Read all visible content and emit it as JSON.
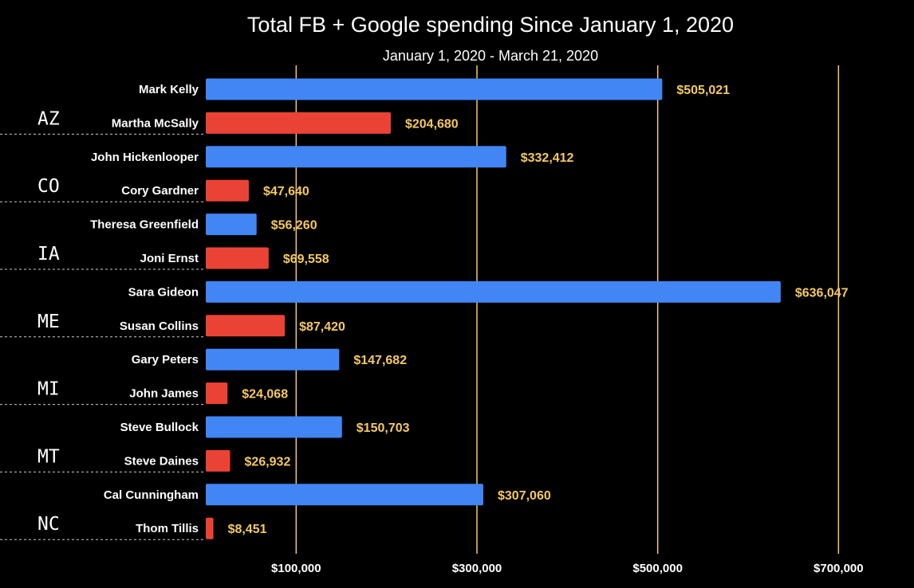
{
  "chart_data": {
    "type": "bar",
    "orientation": "horizontal",
    "title": "Total FB + Google spending Since January 1, 2020",
    "subtitle": "January 1, 2020 - March 21, 2020",
    "categories": [
      "Mark Kelly",
      "Martha McSally",
      "John Hickenlooper",
      "Cory Gardner",
      "Theresa Greenfield",
      "Joni Ernst",
      "Sara Gideon",
      "Susan Collins",
      "Gary Peters",
      "John James",
      "Steve Bullock",
      "Steve Daines",
      "Cal Cunningham",
      "Thom Tillis"
    ],
    "values": [
      505021,
      204680,
      332412,
      47640,
      56260,
      69558,
      636047,
      87420,
      147682,
      24068,
      150703,
      26932,
      307060,
      8451
    ],
    "value_labels": [
      "$505,021",
      "$204,680",
      "$332,412",
      "$47,640",
      "$56,260",
      "$69,558",
      "$636,047",
      "$87,420",
      "$147,682",
      "$24,068",
      "$150,703",
      "$26,932",
      "$307,060",
      "$8,451"
    ],
    "bar_colors": [
      "#4285f4",
      "#ea4335",
      "#4285f4",
      "#ea4335",
      "#4285f4",
      "#ea4335",
      "#4285f4",
      "#ea4335",
      "#4285f4",
      "#ea4335",
      "#4285f4",
      "#ea4335",
      "#4285f4",
      "#ea4335"
    ],
    "groups": [
      "AZ",
      "CO",
      "IA",
      "ME",
      "MI",
      "MT",
      "NC"
    ],
    "xlim": [
      0,
      750000
    ],
    "xticks": [
      100000,
      300000,
      500000,
      700000
    ],
    "xtick_labels": [
      "$100,000",
      "$300,000",
      "$500,000",
      "$700,000"
    ],
    "grid": "vertical",
    "colors": {
      "background": "#000000",
      "grid": "#f5c963",
      "value_label": "#f5c963",
      "text": "#ffffff",
      "divider": "#cccccc"
    }
  }
}
